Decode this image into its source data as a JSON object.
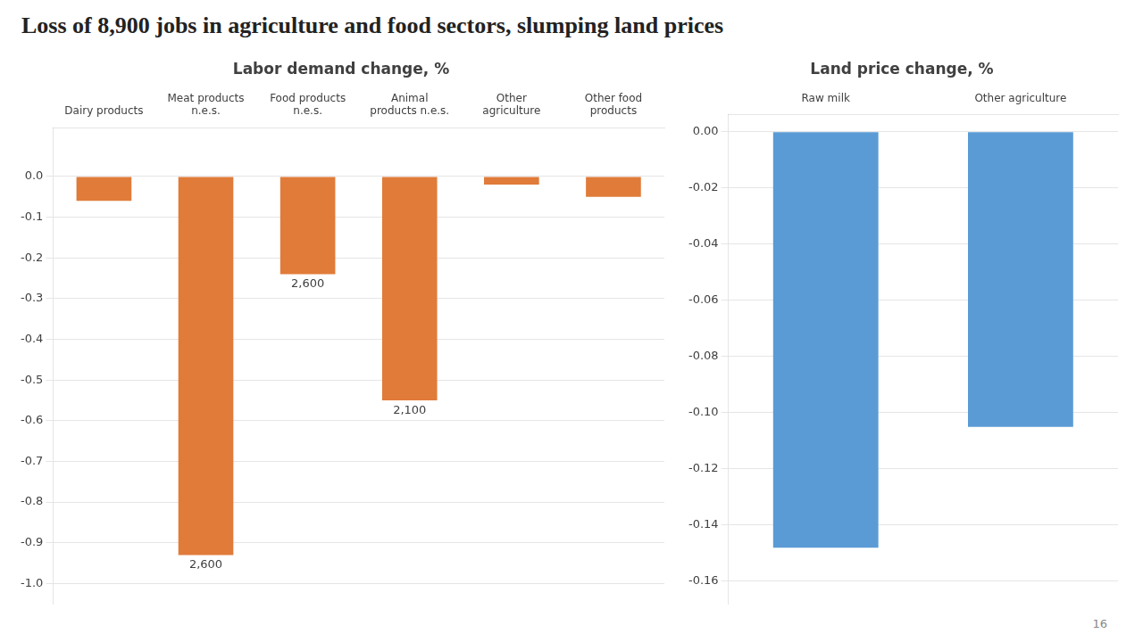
{
  "title": "Loss of 8,900 jobs in agriculture and food sectors, slumping land prices",
  "annotations": [
    "16"
  ],
  "chart_data": [
    {
      "type": "bar",
      "title": "Labor demand change, %",
      "categories": [
        "Dairy products",
        "Meat products\nn.e.s.",
        "Food products\nn.e.s.",
        "Animal\nproducts n.e.s.",
        "Other\nagriculture",
        "Other food\nproducts"
      ],
      "values": [
        -0.06,
        -0.93,
        -0.24,
        -0.55,
        -0.02,
        -0.05
      ],
      "annotations": [
        null,
        "2,600",
        "2,600",
        "2,100",
        null,
        null
      ],
      "color": "#E07B39",
      "ylim": [
        -1.05,
        0.12
      ],
      "yticks": [
        {
          "value": 0.0,
          "label": "0.0"
        },
        -0.1,
        -0.2,
        -0.3,
        -0.4,
        -0.5,
        -0.6,
        -0.7,
        -0.8,
        -0.9,
        {
          "value": -1.0,
          "label": "-1.0"
        }
      ],
      "grid": true
    },
    {
      "type": "bar",
      "title": "Land price change, %",
      "categories": [
        "Raw milk",
        "Other agriculture"
      ],
      "values": [
        -0.148,
        -0.105
      ],
      "color": "#5B9BD5",
      "ylim": [
        -0.168,
        0.006
      ],
      "yticks": [
        {
          "value": 0.0,
          "label": "0.00"
        },
        -0.02,
        -0.04,
        -0.06,
        -0.08,
        {
          "value": -0.1,
          "label": "-0.10"
        },
        -0.12,
        -0.14,
        -0.16
      ],
      "grid": true
    }
  ]
}
